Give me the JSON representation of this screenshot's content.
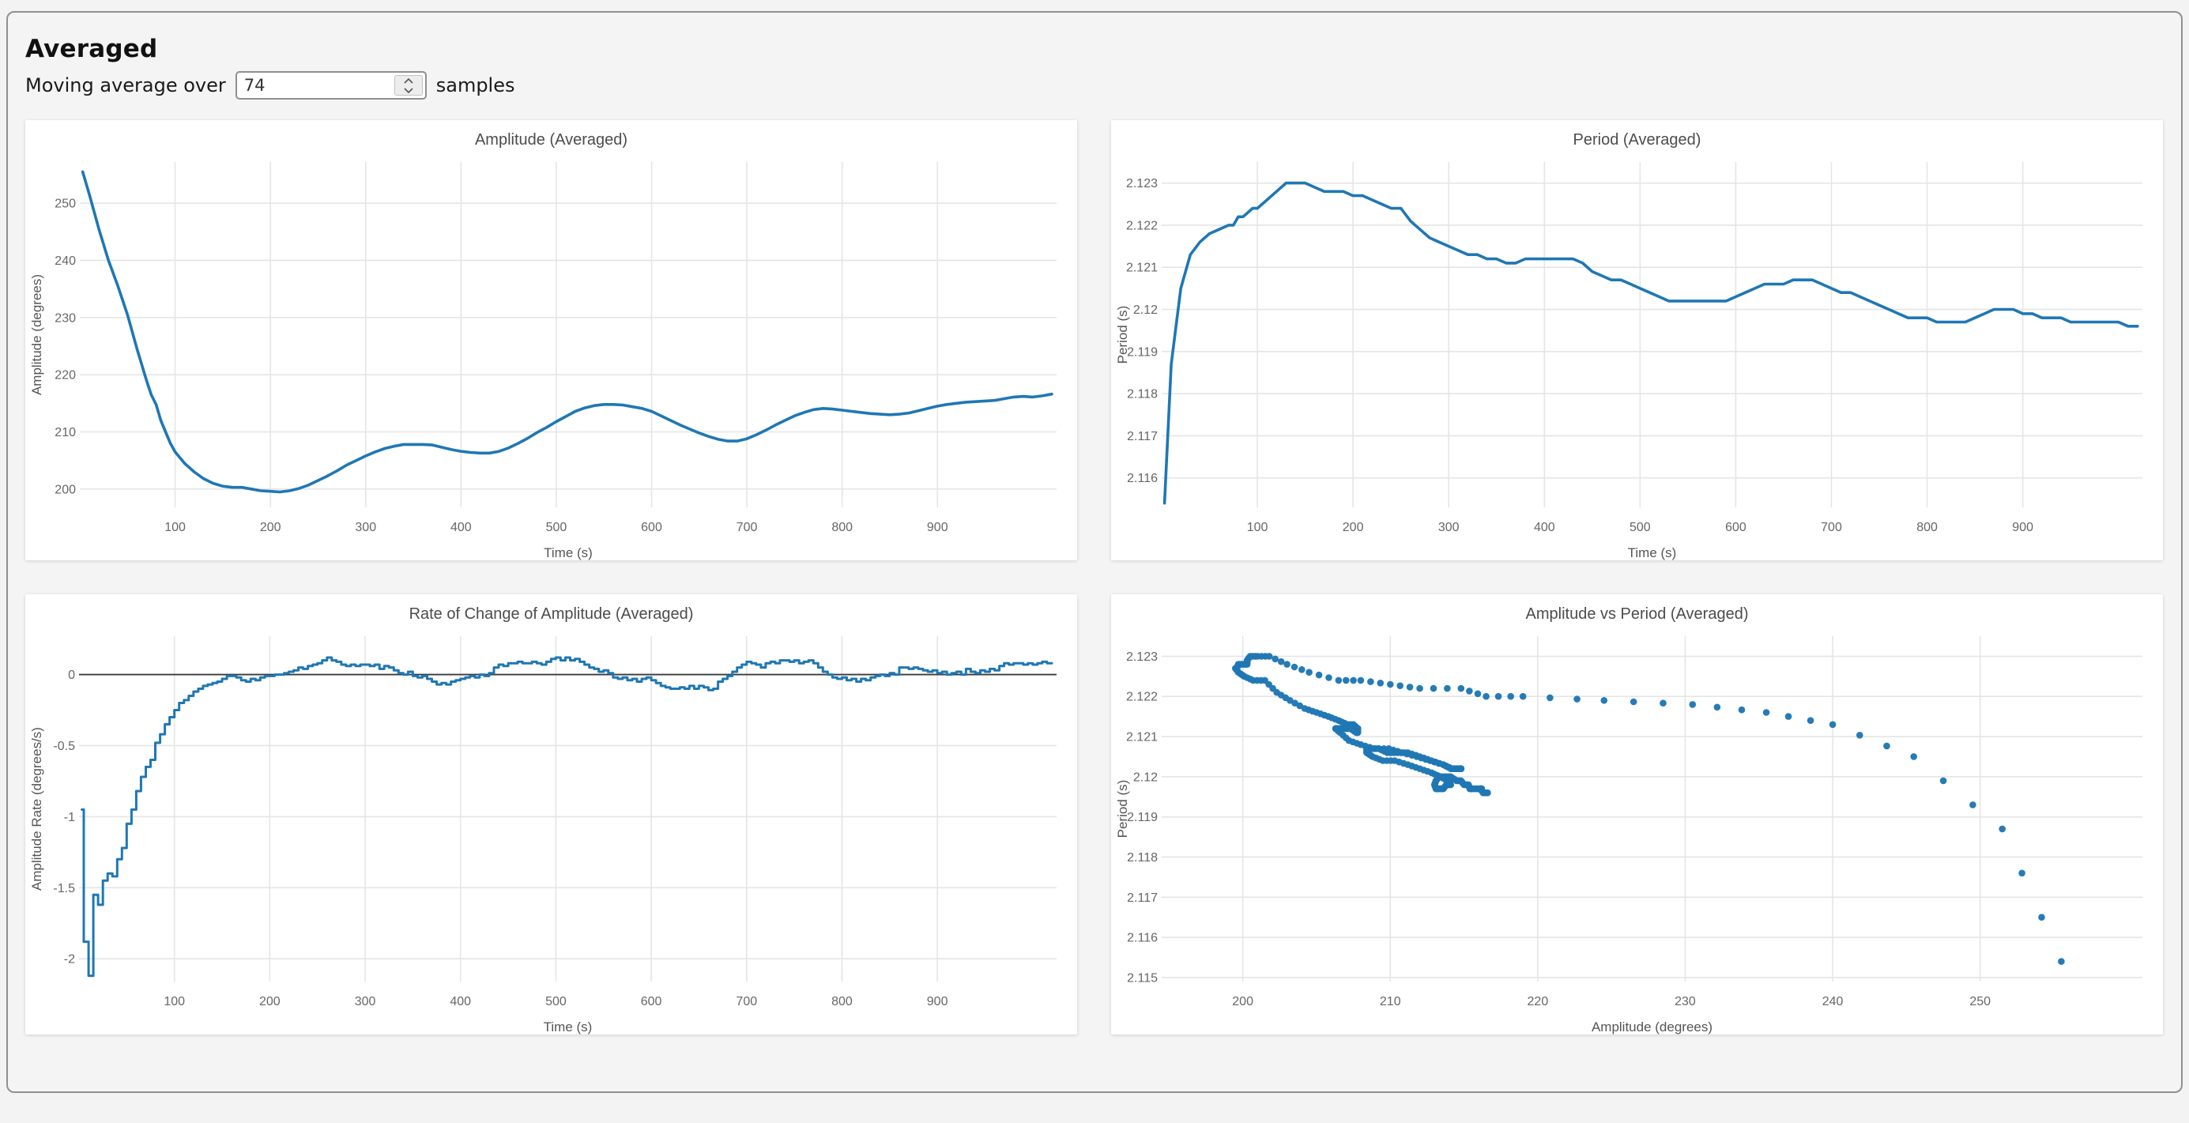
{
  "page": {
    "heading": "Averaged",
    "controls": {
      "label_prefix": "Moving average over",
      "input_value": "74",
      "label_suffix": "samples"
    }
  },
  "style": {
    "page_bg": "#f4f4f4",
    "card_bg": "#ffffff",
    "container_border": "#909090",
    "series_color": "#1f77b4",
    "grid_color": "#e5e5e5",
    "tick_label_color": "#666666",
    "axis_title_color": "#555555",
    "chart_title_color": "#4c4c4c",
    "zero_line_color": "#3a3a3a"
  },
  "chart_data": [
    {
      "id": "amplitude-vs-time",
      "type": "line",
      "title": "Amplitude (Averaged)",
      "xlabel": "Time (s)",
      "ylabel": "Amplitude (degrees)",
      "xlim": [
        0,
        1025
      ],
      "ylim": [
        196.8,
        257.2
      ],
      "xticks": [
        100,
        200,
        300,
        400,
        500,
        600,
        700,
        800,
        900
      ],
      "yticks": [
        200,
        210,
        220,
        230,
        240,
        250
      ],
      "grid": true,
      "legend": "none",
      "line_color": "#1f77b4",
      "x": [
        3,
        10,
        20,
        30,
        40,
        50,
        60,
        70,
        75,
        80,
        85,
        90,
        95,
        100,
        110,
        120,
        130,
        140,
        150,
        160,
        170,
        180,
        190,
        200,
        210,
        220,
        230,
        240,
        250,
        260,
        270,
        280,
        290,
        300,
        310,
        320,
        330,
        340,
        350,
        360,
        370,
        380,
        390,
        400,
        410,
        420,
        430,
        440,
        450,
        460,
        470,
        480,
        490,
        500,
        510,
        520,
        530,
        540,
        550,
        560,
        570,
        580,
        590,
        600,
        610,
        620,
        630,
        640,
        650,
        660,
        670,
        680,
        690,
        700,
        710,
        720,
        730,
        740,
        750,
        760,
        770,
        780,
        790,
        800,
        810,
        820,
        830,
        840,
        850,
        860,
        870,
        880,
        890,
        900,
        910,
        920,
        930,
        940,
        950,
        960,
        970,
        980,
        990,
        1000,
        1010,
        1020
      ],
      "y": [
        255.5,
        251.5,
        245.5,
        240,
        235.5,
        230.5,
        224.5,
        219,
        216.5,
        214.8,
        212,
        210,
        208,
        206.5,
        204.5,
        203,
        201.8,
        201,
        200.5,
        200.3,
        200.3,
        200,
        199.7,
        199.6,
        199.5,
        199.7,
        200.1,
        200.7,
        201.5,
        202.3,
        203.2,
        204.2,
        205,
        205.8,
        206.5,
        207.1,
        207.5,
        207.8,
        207.8,
        207.8,
        207.7,
        207.3,
        206.9,
        206.6,
        206.4,
        206.3,
        206.3,
        206.6,
        207.2,
        208,
        208.9,
        209.9,
        210.8,
        211.8,
        212.7,
        213.6,
        214.2,
        214.6,
        214.8,
        214.8,
        214.7,
        214.4,
        214.1,
        213.6,
        212.8,
        212,
        211.2,
        210.5,
        209.8,
        209.2,
        208.7,
        208.4,
        208.4,
        208.8,
        209.5,
        210.3,
        211.2,
        212,
        212.8,
        213.4,
        213.9,
        214.1,
        214,
        213.8,
        213.6,
        213.4,
        213.2,
        213.1,
        213,
        213.1,
        213.3,
        213.7,
        214.1,
        214.5,
        214.8,
        215,
        215.2,
        215.3,
        215.4,
        215.5,
        215.8,
        216.1,
        216.2,
        216.1,
        216.3,
        216.6
      ]
    },
    {
      "id": "period-vs-time",
      "type": "line",
      "title": "Period (Averaged)",
      "xlabel": "Time (s)",
      "ylabel": "Period (s)",
      "xlim": [
        0,
        1025
      ],
      "ylim": [
        2.1153,
        2.1235
      ],
      "xticks": [
        100,
        200,
        300,
        400,
        500,
        600,
        700,
        800,
        900
      ],
      "yticks": [
        2.116,
        2.117,
        2.118,
        2.119,
        2.12,
        2.121,
        2.122,
        2.123
      ],
      "grid": true,
      "legend": "none",
      "line_color": "#1f77b4",
      "x": [
        3,
        10,
        20,
        30,
        40,
        50,
        60,
        70,
        75,
        80,
        85,
        90,
        95,
        100,
        110,
        120,
        130,
        140,
        150,
        160,
        170,
        180,
        190,
        200,
        210,
        220,
        230,
        240,
        250,
        260,
        270,
        280,
        290,
        300,
        310,
        320,
        330,
        340,
        350,
        360,
        370,
        380,
        390,
        400,
        410,
        420,
        430,
        440,
        450,
        460,
        470,
        480,
        490,
        500,
        510,
        520,
        530,
        540,
        550,
        560,
        570,
        580,
        590,
        600,
        610,
        620,
        630,
        640,
        650,
        660,
        670,
        680,
        690,
        700,
        710,
        720,
        730,
        740,
        750,
        760,
        770,
        780,
        790,
        800,
        810,
        820,
        830,
        840,
        850,
        860,
        870,
        880,
        890,
        900,
        910,
        920,
        930,
        940,
        950,
        960,
        970,
        980,
        990,
        1000,
        1010,
        1020
      ],
      "y": [
        2.1154,
        2.1187,
        2.1205,
        2.1213,
        2.1216,
        2.1218,
        2.1219,
        2.122,
        2.122,
        2.1222,
        2.1222,
        2.1223,
        2.1224,
        2.1224,
        2.1226,
        2.1228,
        2.123,
        2.123,
        2.123,
        2.1229,
        2.1228,
        2.1228,
        2.1228,
        2.1227,
        2.1227,
        2.1226,
        2.1225,
        2.1224,
        2.1224,
        2.1221,
        2.1219,
        2.1217,
        2.1216,
        2.1215,
        2.1214,
        2.1213,
        2.1213,
        2.1212,
        2.1212,
        2.1211,
        2.1211,
        2.1212,
        2.1212,
        2.1212,
        2.1212,
        2.1212,
        2.1212,
        2.1211,
        2.1209,
        2.1208,
        2.1207,
        2.1207,
        2.1206,
        2.1205,
        2.1204,
        2.1203,
        2.1202,
        2.1202,
        2.1202,
        2.1202,
        2.1202,
        2.1202,
        2.1202,
        2.1203,
        2.1204,
        2.1205,
        2.1206,
        2.1206,
        2.1206,
        2.1207,
        2.1207,
        2.1207,
        2.1206,
        2.1205,
        2.1204,
        2.1204,
        2.1203,
        2.1202,
        2.1201,
        2.12,
        2.1199,
        2.1198,
        2.1198,
        2.1198,
        2.1197,
        2.1197,
        2.1197,
        2.1197,
        2.1198,
        2.1199,
        2.12,
        2.12,
        2.12,
        2.1199,
        2.1199,
        2.1198,
        2.1198,
        2.1198,
        2.1197,
        2.1197,
        2.1197,
        2.1197,
        2.1197,
        2.1197,
        2.1196,
        2.1196
      ]
    },
    {
      "id": "amplitude-rate-vs-time",
      "type": "line",
      "title": "Rate of Change of Amplitude (Averaged)",
      "xlabel": "Time (s)",
      "ylabel": "Amplitude Rate (degrees/s)",
      "xlim": [
        0,
        1025
      ],
      "ylim": [
        -2.16,
        0.27
      ],
      "xticks": [
        100,
        200,
        300,
        400,
        500,
        600,
        700,
        800,
        900
      ],
      "yticks": [
        0,
        -0.5,
        -1,
        -1.5,
        -2
      ],
      "grid": true,
      "legend": "none",
      "zero_line": true,
      "step": true,
      "line_color": "#1f77b4",
      "x": {
        "prefix": [
          3,
          5
        ],
        "from": 10,
        "to": 1020,
        "step": 5
      },
      "y": [
        -0.95,
        -1.88,
        -2.12,
        -1.55,
        -1.62,
        -1.45,
        -1.4,
        -1.42,
        -1.3,
        -1.22,
        -1.05,
        -0.95,
        -0.82,
        -0.72,
        -0.65,
        -0.6,
        -0.48,
        -0.42,
        -0.35,
        -0.3,
        -0.25,
        -0.2,
        -0.18,
        -0.15,
        -0.12,
        -0.1,
        -0.08,
        -0.07,
        -0.06,
        -0.05,
        -0.03,
        -0.01,
        -0.01,
        -0.02,
        -0.04,
        -0.05,
        -0.03,
        -0.04,
        -0.02,
        -0.01,
        -0.01,
        0,
        0,
        0.01,
        0.02,
        0.03,
        0.05,
        0.04,
        0.06,
        0.07,
        0.08,
        0.1,
        0.12,
        0.1,
        0.09,
        0.07,
        0.06,
        0.07,
        0.06,
        0.07,
        0.07,
        0.06,
        0.07,
        0.04,
        0.06,
        0.05,
        0.03,
        0.01,
        0,
        0.02,
        -0.01,
        -0.02,
        -0.01,
        -0.03,
        -0.05,
        -0.07,
        -0.06,
        -0.07,
        -0.05,
        -0.04,
        -0.03,
        -0.02,
        -0.01,
        -0.02,
        0,
        -0.01,
        0.01,
        0.05,
        0.07,
        0.06,
        0.08,
        0.08,
        0.09,
        0.08,
        0.08,
        0.09,
        0.08,
        0.07,
        0.09,
        0.11,
        0.12,
        0.1,
        0.12,
        0.1,
        0.11,
        0.09,
        0.07,
        0.05,
        0.04,
        0.02,
        0.03,
        0.01,
        -0.02,
        -0.03,
        -0.02,
        -0.04,
        -0.03,
        -0.05,
        -0.03,
        -0.02,
        -0.04,
        -0.06,
        -0.08,
        -0.09,
        -0.1,
        -0.1,
        -0.09,
        -0.1,
        -0.08,
        -0.1,
        -0.08,
        -0.09,
        -0.11,
        -0.1,
        -0.05,
        -0.03,
        -0.01,
        0.02,
        0.05,
        0.07,
        0.09,
        0.08,
        0.07,
        0.05,
        0.08,
        0.09,
        0.08,
        0.1,
        0.1,
        0.09,
        0.1,
        0.08,
        0.09,
        0.1,
        0.08,
        0.05,
        0.02,
        0,
        -0.02,
        -0.03,
        -0.02,
        -0.04,
        -0.03,
        -0.05,
        -0.03,
        -0.04,
        -0.02,
        -0.01,
        0,
        -0.01,
        0.01,
        0,
        0.05,
        0.05,
        0.04,
        0.05,
        0.04,
        0.03,
        0.02,
        0.03,
        0.01,
        0.02,
        0,
        0.01,
        0.02,
        0,
        0.04,
        0.02,
        0.01,
        0.03,
        0.02,
        0.04,
        0.03,
        0.06,
        0.08,
        0.07,
        0.08,
        0.08,
        0.07,
        0.08,
        0.07,
        0.08,
        0.09,
        0.08,
        0.08
      ]
    },
    {
      "id": "amplitude-vs-period",
      "type": "scatter",
      "title": "Amplitude vs Period (Averaged)",
      "xlabel": "Amplitude (degrees)",
      "ylabel": "Period (s)",
      "xlim": [
        194.5,
        261
      ],
      "ylim": [
        2.1149,
        2.1235
      ],
      "xticks": [
        200,
        210,
        220,
        230,
        240,
        250
      ],
      "yticks": [
        2.115,
        2.116,
        2.117,
        2.118,
        2.119,
        2.12,
        2.121,
        2.122,
        2.123
      ],
      "grid": true,
      "legend": "none",
      "marker_color": "#1f77b4",
      "x": [
        255.5,
        251.5,
        245.5,
        240,
        235.5,
        230.5,
        224.5,
        219,
        216.5,
        214.8,
        212,
        210,
        208,
        206.5,
        204.5,
        203,
        201.8,
        201,
        200.5,
        200.3,
        200.3,
        200,
        199.7,
        199.6,
        199.5,
        199.7,
        200.1,
        200.7,
        201.5,
        202.3,
        203.2,
        204.2,
        205,
        205.8,
        206.5,
        207.1,
        207.5,
        207.8,
        207.8,
        207.8,
        207.7,
        207.3,
        206.9,
        206.6,
        206.4,
        206.3,
        206.3,
        206.6,
        207.2,
        208,
        208.9,
        209.9,
        210.8,
        211.8,
        212.7,
        213.6,
        214.2,
        214.6,
        214.8,
        214.8,
        214.7,
        214.4,
        214.1,
        213.6,
        212.8,
        212,
        211.2,
        210.5,
        209.8,
        209.2,
        208.7,
        208.4,
        208.4,
        208.8,
        209.5,
        210.3,
        211.2,
        212,
        212.8,
        213.4,
        213.9,
        214.1,
        214,
        213.8,
        213.6,
        213.4,
        213.2,
        213.1,
        213,
        213.1,
        213.3,
        213.7,
        214.1,
        214.5,
        214.8,
        215,
        215.2,
        215.3,
        215.4,
        215.5,
        215.8,
        216.1,
        216.2,
        216.1,
        216.3,
        216.6
      ],
      "y": [
        2.1154,
        2.1187,
        2.1205,
        2.1213,
        2.1216,
        2.1218,
        2.1219,
        2.122,
        2.122,
        2.1222,
        2.1222,
        2.1223,
        2.1224,
        2.1224,
        2.1226,
        2.1228,
        2.123,
        2.123,
        2.123,
        2.1229,
        2.1228,
        2.1228,
        2.1228,
        2.1227,
        2.1227,
        2.1226,
        2.1225,
        2.1224,
        2.1224,
        2.1221,
        2.1219,
        2.1217,
        2.1216,
        2.1215,
        2.1214,
        2.1213,
        2.1213,
        2.1212,
        2.1212,
        2.1211,
        2.1211,
        2.1212,
        2.1212,
        2.1212,
        2.1212,
        2.1212,
        2.1212,
        2.1211,
        2.1209,
        2.1208,
        2.1207,
        2.1207,
        2.1206,
        2.1205,
        2.1204,
        2.1203,
        2.1202,
        2.1202,
        2.1202,
        2.1202,
        2.1202,
        2.1202,
        2.1202,
        2.1203,
        2.1204,
        2.1205,
        2.1206,
        2.1206,
        2.1206,
        2.1207,
        2.1207,
        2.1207,
        2.1206,
        2.1205,
        2.1204,
        2.1204,
        2.1203,
        2.1202,
        2.1201,
        2.12,
        2.1199,
        2.1198,
        2.1198,
        2.1198,
        2.1197,
        2.1197,
        2.1197,
        2.1197,
        2.1198,
        2.1199,
        2.12,
        2.12,
        2.12,
        2.1199,
        2.1199,
        2.1198,
        2.1198,
        2.1198,
        2.1197,
        2.1197,
        2.1197,
        2.1197,
        2.1197,
        2.1197,
        2.1196,
        2.1196
      ]
    }
  ]
}
